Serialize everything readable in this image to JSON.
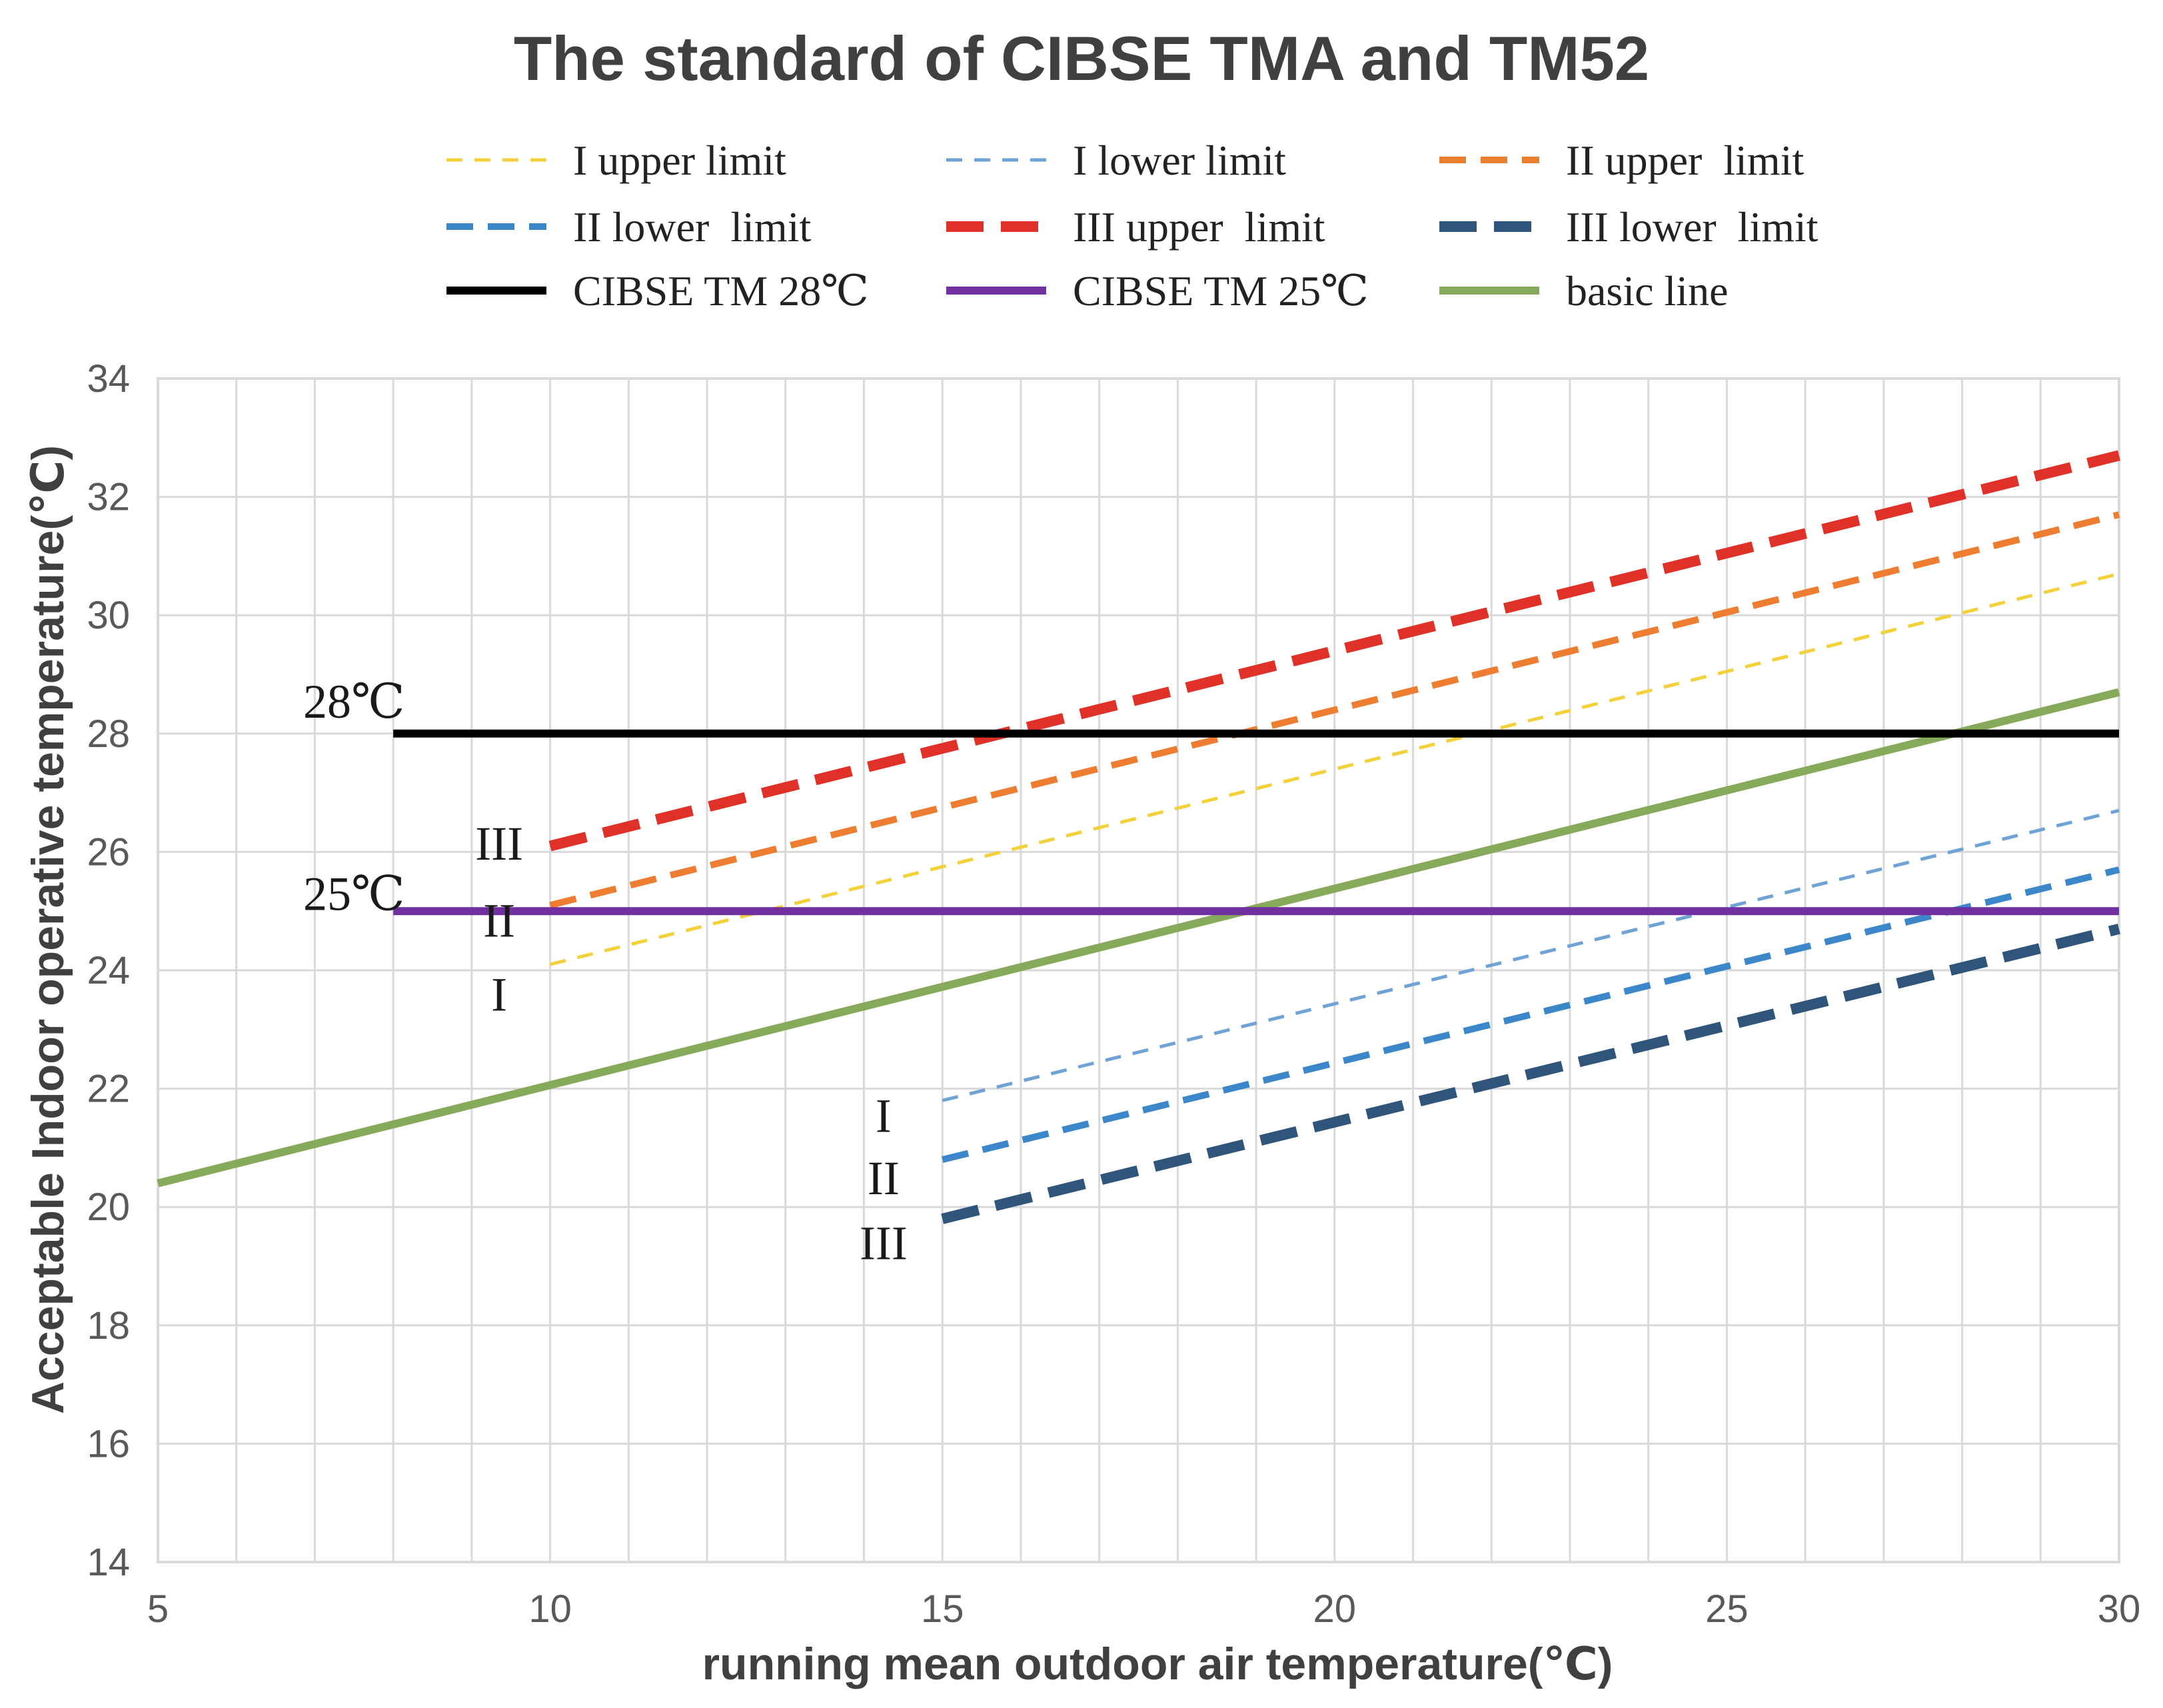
{
  "chart_data": {
    "type": "line",
    "title": "The standard of CIBSE TMA and TM52",
    "xlabel": "running mean outdoor air temperature(℃)",
    "ylabel": "Acceptable Indoor operative temperature(℃)",
    "xlim": [
      5,
      30
    ],
    "ylim": [
      14,
      34
    ],
    "xticks": [
      5,
      10,
      15,
      20,
      25,
      30
    ],
    "yticks": [
      14,
      16,
      18,
      20,
      22,
      24,
      26,
      28,
      30,
      32,
      34
    ],
    "grid": true,
    "legend_position": "top",
    "series": [
      {
        "name": "I upper limit",
        "x": [
          10,
          30
        ],
        "y": [
          24.1,
          30.7
        ],
        "color": "#F2D13B",
        "dash": "short"
      },
      {
        "name": "I lower limit",
        "x": [
          15,
          30
        ],
        "y": [
          21.8,
          26.7
        ],
        "color": "#6FA3D6",
        "dash": "short"
      },
      {
        "name": "II upper  limit",
        "x": [
          10,
          30
        ],
        "y": [
          25.1,
          31.7
        ],
        "color": "#ED7D31",
        "dash": "medium"
      },
      {
        "name": "II lower  limit",
        "x": [
          15,
          30
        ],
        "y": [
          20.8,
          25.7
        ],
        "color": "#3C87C9",
        "dash": "medium"
      },
      {
        "name": "III upper  limit",
        "x": [
          10,
          30
        ],
        "y": [
          26.1,
          32.7
        ],
        "color": "#E03128",
        "dash": "long"
      },
      {
        "name": "III lower  limit",
        "x": [
          15,
          30
        ],
        "y": [
          19.8,
          24.7
        ],
        "color": "#2F557A",
        "dash": "long"
      },
      {
        "name": "CIBSE TM 28℃",
        "x": [
          8,
          30
        ],
        "y": [
          28,
          28
        ],
        "color": "#000000",
        "dash": "solid"
      },
      {
        "name": "CIBSE TM 25℃",
        "x": [
          8,
          30
        ],
        "y": [
          25,
          25
        ],
        "color": "#7030A0",
        "dash": "solid"
      },
      {
        "name": "basic line",
        "x": [
          5,
          30
        ],
        "y": [
          20.4,
          28.7
        ],
        "color": "#86A95A",
        "dash": "solid"
      }
    ],
    "annotations": [
      {
        "text": "28℃",
        "x": 7.5,
        "y": 28.55
      },
      {
        "text": "25℃",
        "x": 7.5,
        "y": 25.3
      },
      {
        "text": "III",
        "x": 9.35,
        "y": 26.15
      },
      {
        "text": "II",
        "x": 9.35,
        "y": 24.85
      },
      {
        "text": "I",
        "x": 9.35,
        "y": 23.6
      },
      {
        "text": "I",
        "x": 14.25,
        "y": 21.55
      },
      {
        "text": "II",
        "x": 14.25,
        "y": 20.5
      },
      {
        "text": "III",
        "x": 14.25,
        "y": 19.4
      }
    ]
  }
}
